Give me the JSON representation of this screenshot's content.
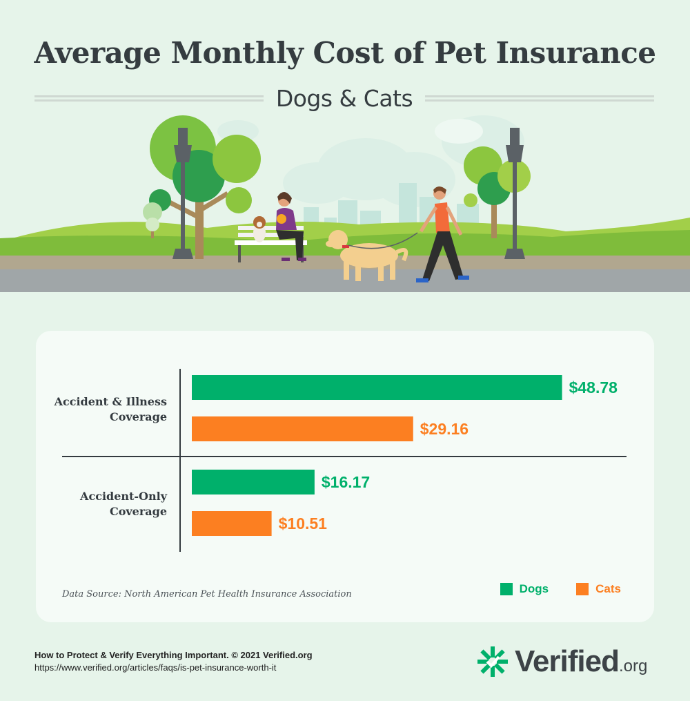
{
  "header": {
    "title": "Average Monthly Cost of Pet Insurance",
    "subtitle": "Dogs & Cats"
  },
  "chart_data": {
    "type": "bar",
    "orientation": "horizontal",
    "categories": [
      "Accident & Illness Coverage",
      "Accident-Only Coverage"
    ],
    "category_lines": [
      [
        "Accident & Illness",
        "Coverage"
      ],
      [
        "Accident-Only",
        "Coverage"
      ]
    ],
    "series": [
      {
        "name": "Dogs",
        "values": [
          48.78,
          16.17
        ],
        "labels": [
          "$48.78",
          "$16.17"
        ],
        "color": "#00b06b"
      },
      {
        "name": "Cats",
        "values": [
          29.16,
          10.51
        ],
        "labels": [
          "$29.16",
          "$10.51"
        ],
        "color": "#fc7f21"
      }
    ],
    "xlim": [
      0,
      55
    ],
    "grid": false,
    "legend_position": "bottom-right"
  },
  "card": {
    "source": "Data Source: North American Pet Health Insurance Association"
  },
  "footer": {
    "tagline": "How to Protect & Verify Everything Important. © 2021 Verified.org",
    "url": "https://www.verified.org/articles/faqs/is-pet-insurance-worth-it"
  },
  "logo": {
    "name": "Verified",
    "suffix": ".org",
    "icon": "verified-asterisk-icon",
    "color": "#00b06b"
  },
  "colors": {
    "background": "#e6f4ea",
    "text": "#353c40",
    "dogs": "#00b06b",
    "cats": "#fc7f21"
  },
  "scene": {
    "icons": [
      "tree-icon",
      "street-lamp-icon",
      "bench-icon",
      "woman-with-cat-icon",
      "beagle-icon",
      "golden-retriever-icon",
      "man-walking-icon",
      "city-skyline-icon"
    ]
  }
}
